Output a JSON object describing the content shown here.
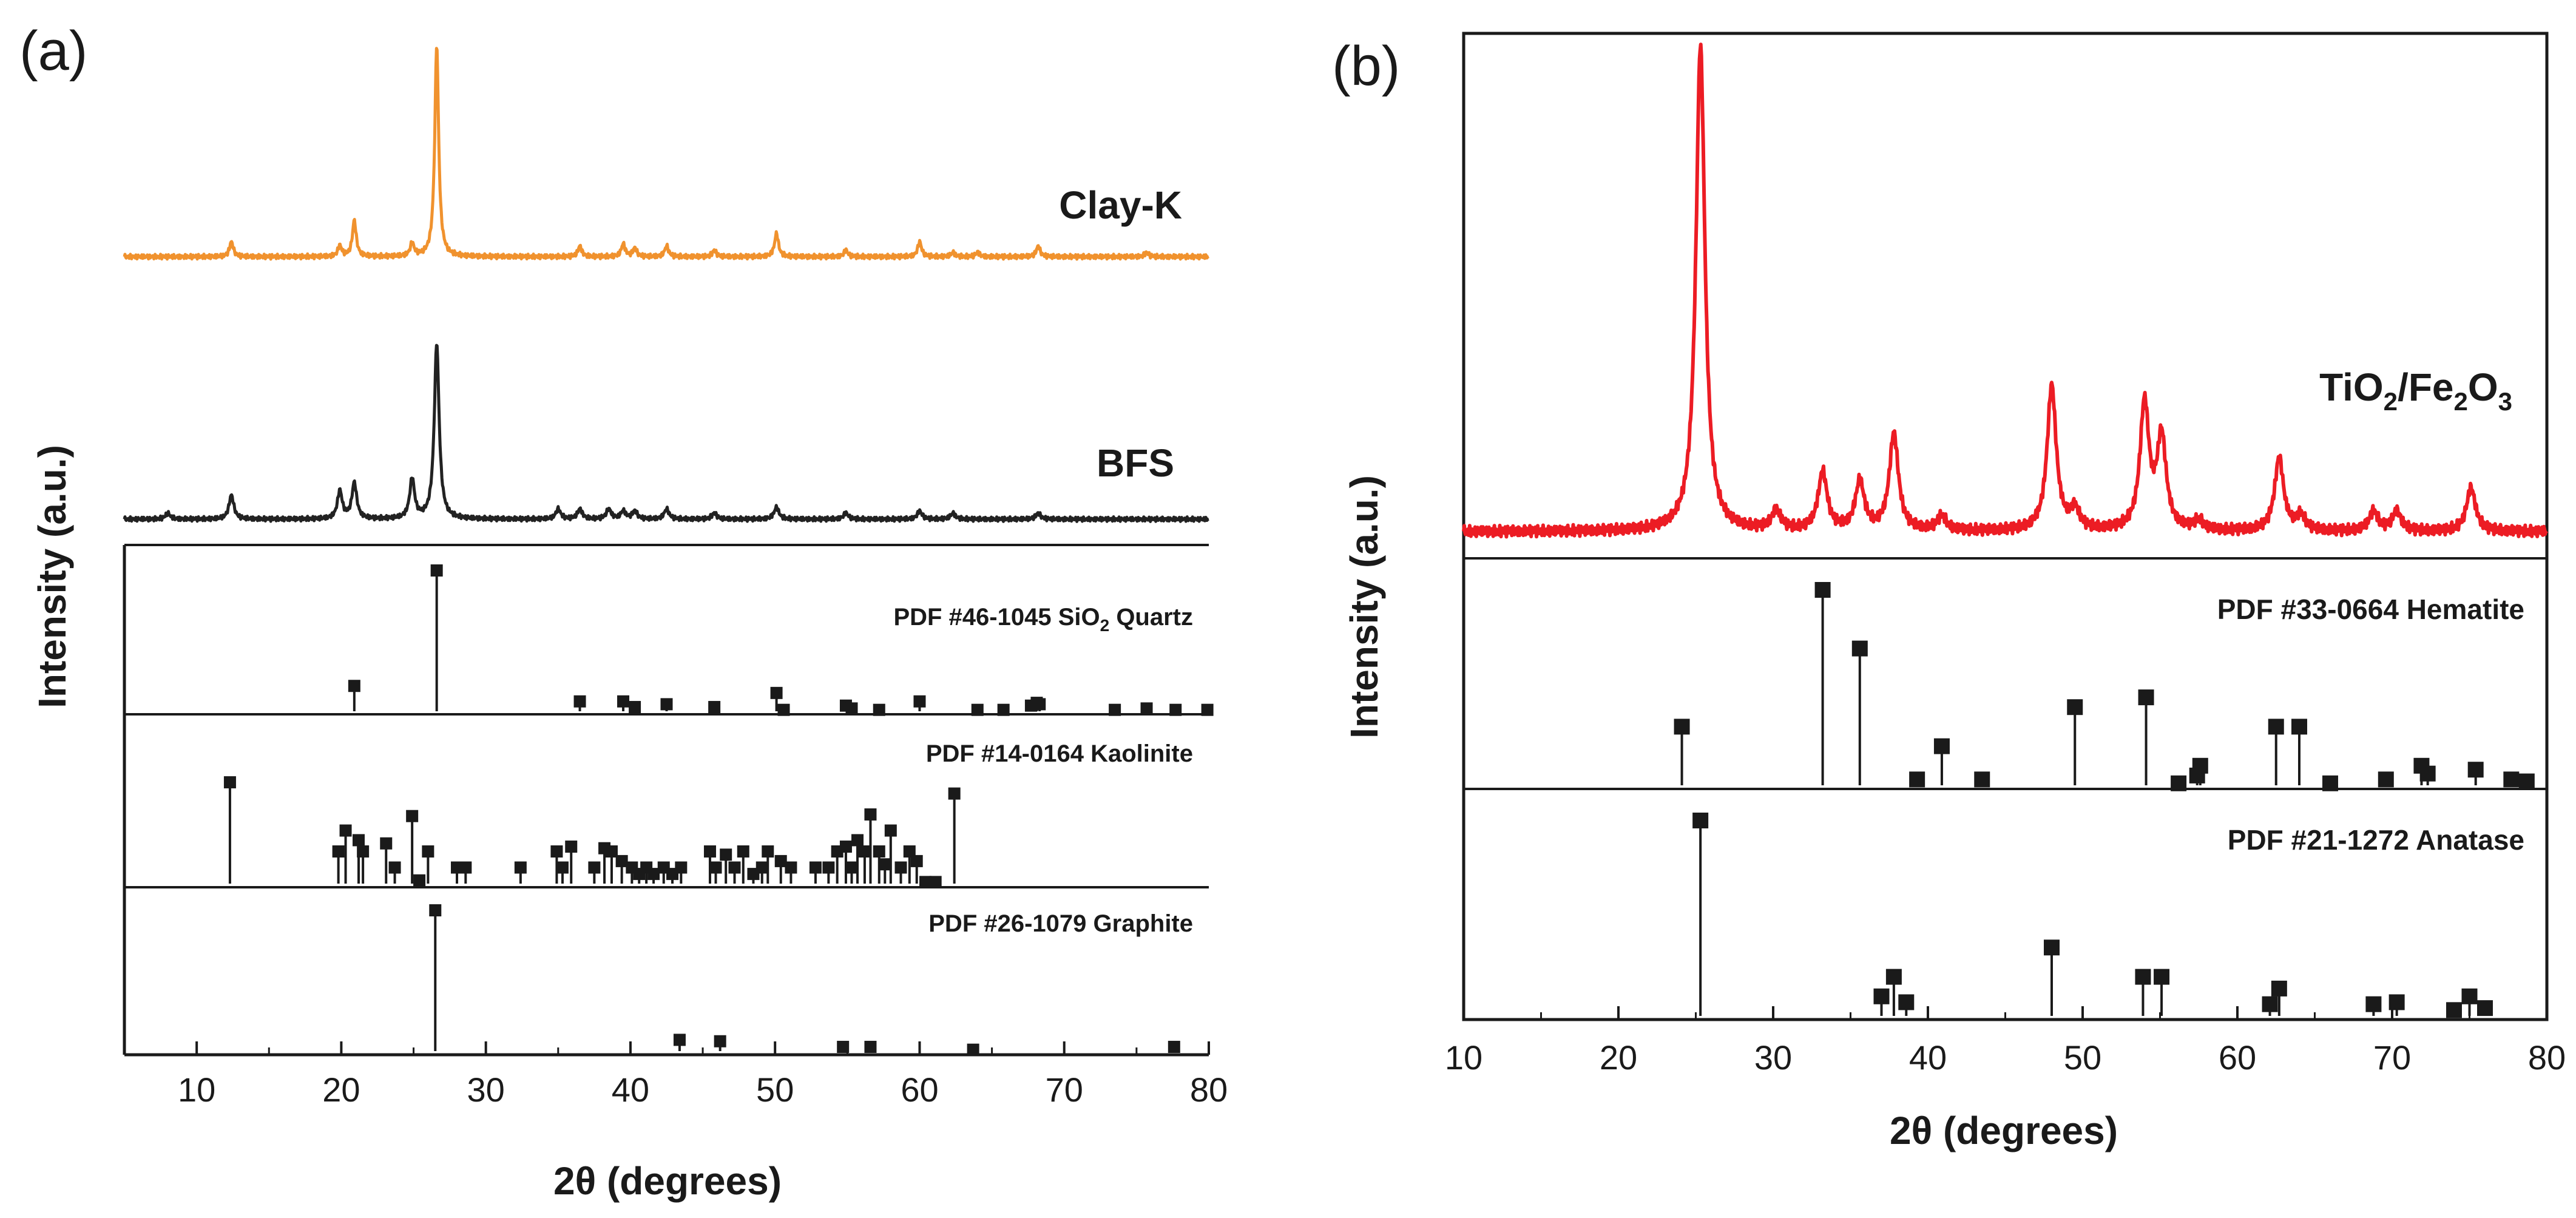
{
  "panel_a": {
    "letter": "(a)",
    "ylabel": "Intensity (a.u.)",
    "xlabel": "2θ (degrees)",
    "xlim": [
      5,
      80
    ],
    "ticks": [
      "10",
      "20",
      "30",
      "40",
      "50",
      "60",
      "70",
      "80"
    ],
    "labels": {
      "clay": "Clay-K",
      "bfs": "BFS",
      "quartz_pre": "PDF #46-1045 SiO",
      "quartz_sub": "2",
      "quartz_post": " Quartz",
      "kaolinite": "PDF #14-0164 Kaolinite",
      "graphite": "PDF #26-1079 Graphite"
    }
  },
  "panel_b": {
    "letter": "(b)",
    "ylabel": "Intensity (a.u.)",
    "xlabel": "2θ (degrees)",
    "xlim": [
      10,
      80
    ],
    "ticks": [
      "10",
      "20",
      "30",
      "40",
      "50",
      "60",
      "70",
      "80"
    ],
    "labels": {
      "sample_ti": "TiO",
      "sample_sub1": "2",
      "sample_mid": "/Fe",
      "sample_sub2": "2",
      "sample_o": "O",
      "sample_sub3": "3",
      "hematite": "PDF #33-0664 Hematite",
      "anatase": "PDF #21-1272 Anatase"
    }
  },
  "colors": {
    "clay": "#f0922e",
    "bfs": "#222222",
    "tio2": "#ec1c24",
    "stick": "#1a1a1a"
  },
  "chart_data": [
    {
      "type": "line",
      "panel": "a",
      "title": "",
      "xlabel": "2θ (degrees)",
      "ylabel": "Intensity (a.u.)",
      "xlim": [
        5,
        80
      ],
      "series": [
        {
          "name": "Clay-K",
          "baseline": 0.02,
          "peaks": [
            [
              12.4,
              0.07
            ],
            [
              19.9,
              0.05
            ],
            [
              20.9,
              0.17
            ],
            [
              24.9,
              0.06
            ],
            [
              26.6,
              1.0
            ],
            [
              36.5,
              0.05
            ],
            [
              39.5,
              0.06
            ],
            [
              40.3,
              0.04
            ],
            [
              42.5,
              0.05
            ],
            [
              45.8,
              0.03
            ],
            [
              50.1,
              0.11
            ],
            [
              54.9,
              0.03
            ],
            [
              60.0,
              0.07
            ],
            [
              62.3,
              0.02
            ],
            [
              64.0,
              0.02
            ],
            [
              68.2,
              0.05
            ],
            [
              75.7,
              0.02
            ]
          ]
        },
        {
          "name": "BFS",
          "baseline": 0.05,
          "peaks": [
            [
              8.0,
              0.03
            ],
            [
              12.4,
              0.12
            ],
            [
              19.9,
              0.14
            ],
            [
              20.9,
              0.18
            ],
            [
              24.9,
              0.2
            ],
            [
              26.6,
              0.88
            ],
            [
              35.0,
              0.05
            ],
            [
              36.5,
              0.05
            ],
            [
              38.5,
              0.05
            ],
            [
              39.5,
              0.04
            ],
            [
              40.3,
              0.04
            ],
            [
              42.5,
              0.05
            ],
            [
              45.8,
              0.03
            ],
            [
              50.1,
              0.06
            ],
            [
              54.9,
              0.03
            ],
            [
              60.0,
              0.04
            ],
            [
              62.3,
              0.03
            ],
            [
              68.2,
              0.03
            ]
          ]
        }
      ]
    },
    {
      "type": "bar",
      "panel": "a",
      "title": "PDF #46-1045 SiO2 Quartz",
      "x": [
        20.9,
        26.6,
        36.5,
        39.5,
        40.3,
        42.5,
        45.8,
        50.1,
        50.6,
        54.9,
        55.3,
        57.2,
        60.0,
        64.0,
        65.8,
        67.7,
        68.1,
        68.3,
        73.5,
        75.7,
        77.7,
        79.9
      ],
      "values": [
        0.18,
        1.0,
        0.07,
        0.07,
        0.03,
        0.05,
        0.03,
        0.13,
        0.01,
        0.04,
        0.02,
        0.01,
        0.07,
        0.01,
        0.01,
        0.04,
        0.06,
        0.05,
        0.01,
        0.02,
        0.01,
        0.01
      ]
    },
    {
      "type": "bar",
      "panel": "a",
      "title": "PDF #14-0164 Kaolinite",
      "x": [
        12.3,
        19.8,
        20.3,
        21.2,
        21.5,
        23.1,
        23.7,
        24.9,
        25.4,
        26.0,
        28.0,
        28.6,
        32.4,
        34.9,
        35.3,
        35.9,
        37.5,
        38.2,
        38.7,
        39.4,
        40.1,
        40.6,
        41.1,
        41.6,
        42.3,
        42.9,
        43.5,
        45.5,
        45.9,
        46.6,
        47.2,
        47.8,
        48.5,
        49.1,
        49.5,
        50.4,
        51.1,
        52.8,
        53.7,
        54.3,
        54.9,
        55.3,
        55.7,
        56.2,
        56.6,
        57.2,
        57.6,
        58.0,
        58.7,
        59.3,
        59.8,
        60.4,
        61.1,
        62.4
      ],
      "values": [
        0.63,
        0.2,
        0.33,
        0.27,
        0.2,
        0.25,
        0.1,
        0.42,
        0.02,
        0.2,
        0.1,
        0.1,
        0.1,
        0.2,
        0.1,
        0.23,
        0.1,
        0.22,
        0.2,
        0.14,
        0.1,
        0.06,
        0.1,
        0.06,
        0.1,
        0.06,
        0.1,
        0.2,
        0.1,
        0.18,
        0.1,
        0.2,
        0.06,
        0.1,
        0.2,
        0.14,
        0.1,
        0.1,
        0.1,
        0.2,
        0.23,
        0.1,
        0.27,
        0.2,
        0.43,
        0.2,
        0.12,
        0.33,
        0.1,
        0.2,
        0.14,
        0.01,
        0.01,
        0.56
      ]
    },
    {
      "type": "bar",
      "panel": "a",
      "title": "PDF #26-1079 Graphite",
      "x": [
        26.5,
        43.4,
        46.2,
        54.7,
        56.6,
        63.7,
        77.6
      ],
      "values": [
        1.0,
        0.08,
        0.07,
        0.03,
        0.03,
        0.01,
        0.03
      ]
    },
    {
      "type": "line",
      "panel": "b",
      "title": "",
      "xlabel": "2θ (degrees)",
      "ylabel": "Intensity (a.u.)",
      "xlim": [
        10,
        80
      ],
      "series": [
        {
          "name": "TiO2/Fe2O3",
          "baseline": 0.03,
          "peaks": [
            [
              25.3,
              1.0
            ],
            [
              30.2,
              0.04
            ],
            [
              33.2,
              0.12
            ],
            [
              35.6,
              0.1
            ],
            [
              37.8,
              0.2
            ],
            [
              40.9,
              0.03
            ],
            [
              48.0,
              0.3
            ],
            [
              49.5,
              0.04
            ],
            [
              54.0,
              0.26
            ],
            [
              55.1,
              0.19
            ],
            [
              57.5,
              0.02
            ],
            [
              62.7,
              0.15
            ],
            [
              64.1,
              0.03
            ],
            [
              68.8,
              0.04
            ],
            [
              70.3,
              0.04
            ],
            [
              75.1,
              0.09
            ]
          ]
        }
      ]
    },
    {
      "type": "bar",
      "panel": "b",
      "title": "PDF #33-0664 Hematite",
      "x": [
        24.1,
        33.2,
        35.6,
        39.3,
        40.9,
        43.5,
        49.5,
        54.1,
        56.2,
        57.4,
        57.6,
        62.5,
        64.0,
        66.0,
        69.6,
        71.9,
        72.3,
        75.4,
        77.7,
        78.7
      ],
      "values": [
        0.3,
        1.0,
        0.7,
        0.03,
        0.2,
        0.03,
        0.4,
        0.45,
        0.01,
        0.05,
        0.1,
        0.3,
        0.3,
        0.01,
        0.03,
        0.1,
        0.06,
        0.08,
        0.03,
        0.02
      ]
    },
    {
      "type": "bar",
      "panel": "b",
      "title": "PDF #21-1272 Anatase",
      "x": [
        25.3,
        37.0,
        37.8,
        38.6,
        48.0,
        53.9,
        55.1,
        62.1,
        62.7,
        68.8,
        70.3,
        74.0,
        75.0,
        76.0
      ],
      "values": [
        1.0,
        0.1,
        0.2,
        0.07,
        0.35,
        0.2,
        0.2,
        0.06,
        0.14,
        0.06,
        0.07,
        0.03,
        0.1,
        0.04
      ]
    }
  ]
}
